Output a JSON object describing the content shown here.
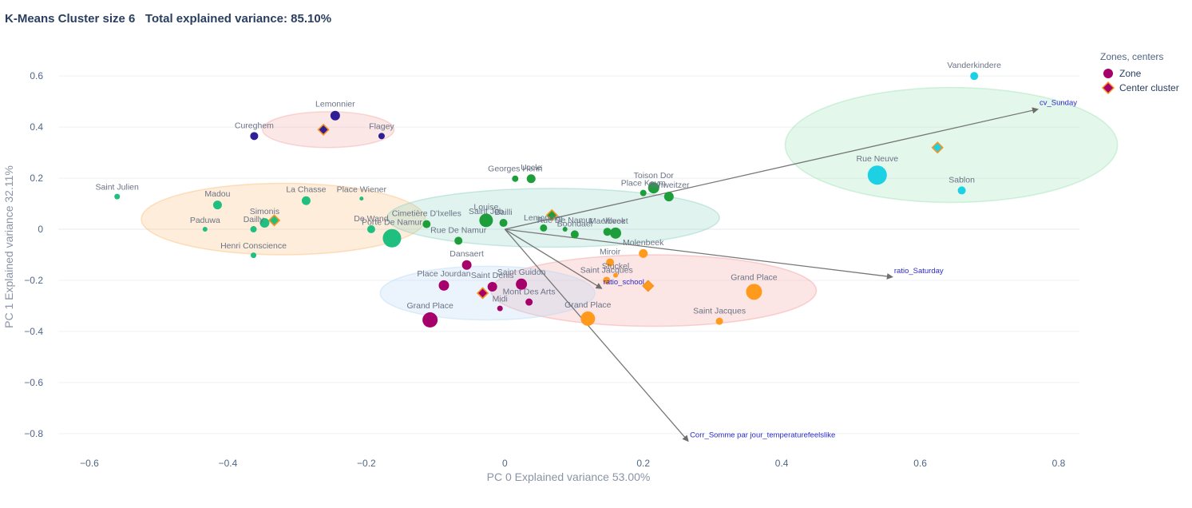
{
  "chart_data": {
    "type": "scatter",
    "title": "K-Means Cluster size 6   Total explained variance: 85.10%",
    "xlabel": "PC 0 Explained variance 53.00%",
    "ylabel": "PC 1 Explained variance  32.11%",
    "xlim": [
      -0.645,
      0.83
    ],
    "ylim": [
      -0.885,
      0.71
    ],
    "xticks": [
      -0.6,
      -0.4,
      -0.2,
      0,
      0.2,
      0.4,
      0.6,
      0.8
    ],
    "xtick_labels": [
      "−0.6",
      "−0.4",
      "−0.2",
      "0",
      "0.2",
      "0.4",
      "0.6",
      "0.8"
    ],
    "yticks": [
      0.6,
      0.4,
      0.2,
      0,
      -0.2,
      -0.4,
      -0.6,
      -0.8
    ],
    "ytick_labels": [
      "0.6",
      "0.4",
      "0.2",
      "0",
      "−0.2",
      "−0.4",
      "−0.6",
      "−0.8"
    ],
    "grid": true,
    "legend": {
      "title": "Zones, centers",
      "position": "top-right",
      "items": [
        {
          "label": "Zone",
          "symbol": "circle",
          "color": "#a6006b"
        },
        {
          "label": "Center cluster",
          "symbol": "diamond",
          "color": "#a6006b",
          "edge": "#f7931e"
        }
      ]
    },
    "ellipses": [
      {
        "cx": -0.255,
        "cy": 0.39,
        "rx": 0.095,
        "ry": 0.07,
        "color": "#f4a8a8"
      },
      {
        "cx": -0.32,
        "cy": 0.04,
        "rx": 0.205,
        "ry": 0.14,
        "color": "#fbbf7b"
      },
      {
        "cx": 0.07,
        "cy": 0.045,
        "rx": 0.24,
        "ry": 0.115,
        "color": "#8fd3c4"
      },
      {
        "cx": 0.215,
        "cy": -0.24,
        "rx": 0.235,
        "ry": 0.14,
        "color": "#f4a0a0"
      },
      {
        "cx": -0.025,
        "cy": -0.25,
        "rx": 0.155,
        "ry": 0.105,
        "color": "#b7d9f5"
      },
      {
        "cx": 0.645,
        "cy": 0.33,
        "rx": 0.24,
        "ry": 0.225,
        "color": "#9fe3b8"
      }
    ],
    "series": [
      {
        "name": "",
        "color": "#2f1f96",
        "points": [
          {
            "label": "Lemonnier",
            "x": -0.245,
            "y": 0.445,
            "size": 6
          },
          {
            "label": "Cureghem",
            "x": -0.362,
            "y": 0.365,
            "size": 5
          },
          {
            "label": "Flagey",
            "x": -0.178,
            "y": 0.365,
            "size": 4
          }
        ],
        "center": {
          "x": -0.262,
          "y": 0.39
        }
      },
      {
        "name": "",
        "color": "#1fbf7f",
        "points": [
          {
            "label": "Saint Julien",
            "x": -0.56,
            "y": 0.128,
            "size": 3.5
          },
          {
            "label": "Madou",
            "x": -0.415,
            "y": 0.095,
            "size": 5.5
          },
          {
            "label": "La Chasse",
            "x": -0.287,
            "y": 0.112,
            "size": 5.5
          },
          {
            "label": "Place Wiener",
            "x": -0.207,
            "y": 0.12,
            "size": 2.5
          },
          {
            "label": "Paduwa",
            "x": -0.433,
            "y": 0.0,
            "size": 3
          },
          {
            "label": "Simonis",
            "x": -0.347,
            "y": 0.025,
            "size": 6
          },
          {
            "label": "Dailly",
            "x": -0.363,
            "y": 0.0,
            "size": 4
          },
          {
            "label": "De Wand",
            "x": -0.193,
            "y": 0.0,
            "size": 5
          },
          {
            "label": "Porte De Namur",
            "x": -0.163,
            "y": -0.035,
            "size": 11.5
          },
          {
            "label": "Henri Conscience",
            "x": -0.363,
            "y": -0.102,
            "size": 3.5
          }
        ],
        "center": {
          "x": -0.333,
          "y": 0.035
        }
      },
      {
        "name": "",
        "color": "#1e9e3a",
        "points": [
          {
            "label": "Georges Henri",
            "x": 0.015,
            "y": 0.198,
            "size": 4
          },
          {
            "label": "Uccle",
            "x": 0.038,
            "y": 0.198,
            "size": 5.5
          },
          {
            "label": "Toison Dor",
            "x": 0.215,
            "y": 0.162,
            "size": 7
          },
          {
            "label": "Place Keym",
            "x": 0.2,
            "y": 0.142,
            "size": 4
          },
          {
            "label": "Schweitzer",
            "x": 0.237,
            "y": 0.128,
            "size": 6
          },
          {
            "label": "Cimetière D'Ixelles",
            "x": -0.113,
            "y": 0.02,
            "size": 5
          },
          {
            "label": "Louise",
            "x": -0.027,
            "y": 0.035,
            "size": 8.5
          },
          {
            "label": "Saint Job",
            "x": -0.027,
            "y": 0.035,
            "size": 0
          },
          {
            "label": "Bailli",
            "x": -0.002,
            "y": 0.025,
            "size": 5
          },
          {
            "label": "Lemonnier",
            "x": 0.056,
            "y": 0.005,
            "size": 4.5
          },
          {
            "label": "Rue De Namur",
            "x": 0.087,
            "y": 0.0,
            "size": 3
          },
          {
            "label": "Boondael",
            "x": 0.101,
            "y": -0.02,
            "size": 5
          },
          {
            "label": "Maelbeek",
            "x": 0.148,
            "y": -0.01,
            "size": 5
          },
          {
            "label": "Vilvoet",
            "x": 0.16,
            "y": -0.015,
            "size": 7
          },
          {
            "label": "Rue De Namur",
            "x": -0.067,
            "y": -0.045,
            "size": 5
          }
        ],
        "center": {
          "x": 0.068,
          "y": 0.055
        }
      },
      {
        "name": "",
        "color": "#ff9a1c",
        "points": [
          {
            "label": "Molenbeek",
            "x": 0.2,
            "y": -0.095,
            "size": 5.5
          },
          {
            "label": "Miroir",
            "x": 0.152,
            "y": -0.13,
            "size": 5
          },
          {
            "label": "Saint Jacques",
            "x": 0.147,
            "y": -0.2,
            "size": 4.5
          },
          {
            "label": "Stuckel",
            "x": 0.16,
            "y": -0.18,
            "size": 3
          },
          {
            "label": "Grand Place",
            "x": 0.36,
            "y": -0.245,
            "size": 10
          },
          {
            "label": "Grand Place",
            "x": 0.12,
            "y": -0.35,
            "size": 9
          },
          {
            "label": "Saint Jacques",
            "x": 0.31,
            "y": -0.36,
            "size": 4.5
          }
        ],
        "center": {
          "x": 0.207,
          "y": -0.222
        }
      },
      {
        "name": "",
        "color": "#a6006b",
        "points": [
          {
            "label": "Dansaert",
            "x": -0.055,
            "y": -0.14,
            "size": 6
          },
          {
            "label": "Place Jourdan",
            "x": -0.088,
            "y": -0.22,
            "size": 6.5
          },
          {
            "label": "Saint Denis",
            "x": -0.018,
            "y": -0.225,
            "size": 6
          },
          {
            "label": "Saint Guidon",
            "x": 0.024,
            "y": -0.215,
            "size": 7
          },
          {
            "label": "Mont Des Arts",
            "x": 0.035,
            "y": -0.285,
            "size": 4.5
          },
          {
            "label": "Midi",
            "x": -0.007,
            "y": -0.31,
            "size": 3.5
          },
          {
            "label": "Grand Place",
            "x": -0.108,
            "y": -0.355,
            "size": 9.5
          }
        ],
        "center": {
          "x": -0.032,
          "y": -0.25
        }
      },
      {
        "name": "",
        "color": "#1dd1e5",
        "points": [
          {
            "label": "Vanderkindere",
            "x": 0.678,
            "y": 0.6,
            "size": 5
          },
          {
            "label": "Rue Neuve",
            "x": 0.538,
            "y": 0.212,
            "size": 12
          },
          {
            "label": "Sablon",
            "x": 0.66,
            "y": 0.152,
            "size": 5
          }
        ],
        "center": {
          "x": 0.625,
          "y": 0.32
        }
      }
    ],
    "loadings": [
      {
        "label": "cv_Sunday",
        "x": 0.77,
        "y": 0.47
      },
      {
        "label": "ratio_Saturday",
        "x": 0.56,
        "y": -0.187
      },
      {
        "label": "ratio_school",
        "x": 0.14,
        "y": -0.232
      },
      {
        "label": "Corr_Somme par jour_temperaturefeelslike",
        "x": 0.265,
        "y": -0.83
      }
    ]
  }
}
